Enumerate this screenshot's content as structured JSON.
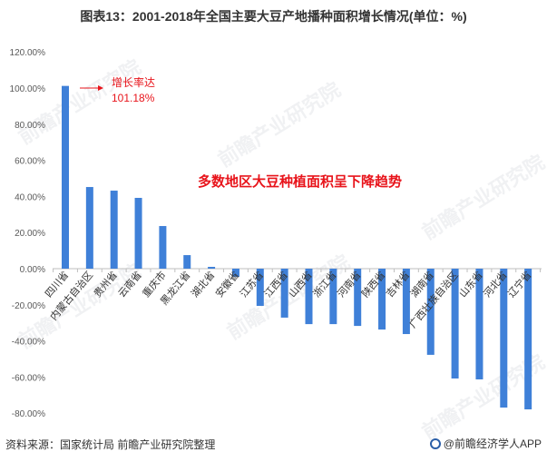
{
  "chart_data": {
    "type": "bar",
    "title": "图表13：2001-2018年全国主要大豆产地播种面积增长情况(单位：%)",
    "categories": [
      "四川省",
      "内蒙古自治区",
      "贵州省",
      "云南省",
      "重庆市",
      "黑龙江省",
      "湖北省",
      "安徽省",
      "江苏省",
      "江西省",
      "山西省",
      "浙江省",
      "河南省",
      "陕西省",
      "吉林省",
      "湖南省",
      "广西壮族自治区",
      "山东省",
      "河北省",
      "辽宁省"
    ],
    "values": [
      101.18,
      45.2,
      43.2,
      39.2,
      23.6,
      7.5,
      1.0,
      -4.5,
      -20.6,
      -27.1,
      -30.7,
      -30.7,
      -31.7,
      -33.7,
      -36.2,
      -47.7,
      -60.8,
      -61.3,
      -76.9,
      -77.9
    ],
    "ylim": [
      -80,
      120
    ],
    "yticks": [
      "120.00%",
      "100.00%",
      "80.00%",
      "60.00%",
      "40.00%",
      "20.00%",
      "0.00%",
      "-20.00%",
      "-40.00%",
      "-60.00%",
      "-80.00%"
    ],
    "ytick_values": [
      120,
      100,
      80,
      60,
      40,
      20,
      0,
      -20,
      -40,
      -60,
      -80
    ],
    "xlabel": "",
    "ylabel": "",
    "grid": false,
    "legend": "none",
    "bar_color": "#3f80d8"
  },
  "annotation": {
    "line1": "增长率达",
    "line2": "101.18%"
  },
  "callout": "多数地区大豆种植面积呈下降趋势",
  "footer": {
    "source": "资料来源：国家统计局 前瞻产业研究院整理",
    "brand": "@前瞻经济学人APP"
  },
  "watermark": "前瞻产业研究院",
  "colors": {
    "accent_red": "#e8141b",
    "text": "#333333",
    "axis": "#bfbfbf"
  }
}
